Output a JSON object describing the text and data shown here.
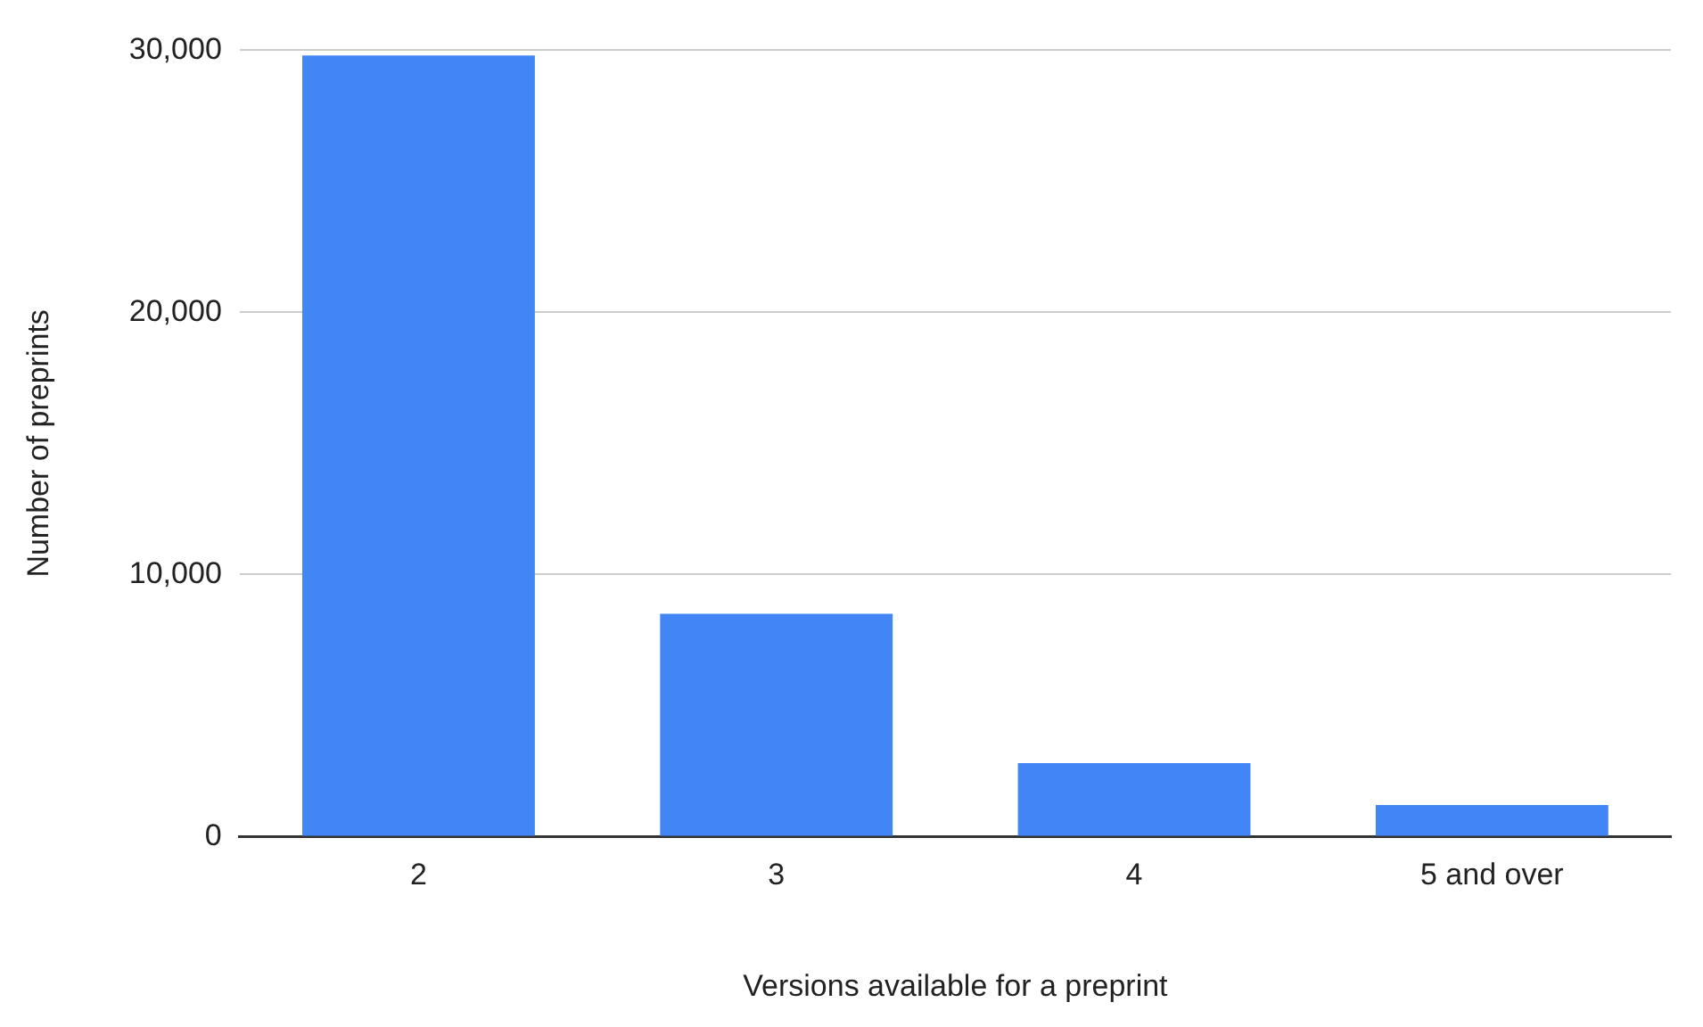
{
  "chart_data": {
    "type": "bar",
    "xlabel": "Versions available for a preprint",
    "ylabel": "Number of preprints",
    "categories": [
      "2",
      "3",
      "4",
      "5 and over"
    ],
    "values": [
      29800,
      8500,
      2800,
      1200
    ],
    "color": "#4285f4",
    "ylim": [
      0,
      30000
    ],
    "yticks": [
      {
        "value": 0,
        "label": "0"
      },
      {
        "value": 10000,
        "label": "10,000"
      },
      {
        "value": 20000,
        "label": "20,000"
      },
      {
        "value": 30000,
        "label": "30,000"
      }
    ],
    "grid": "y",
    "legend": false
  }
}
